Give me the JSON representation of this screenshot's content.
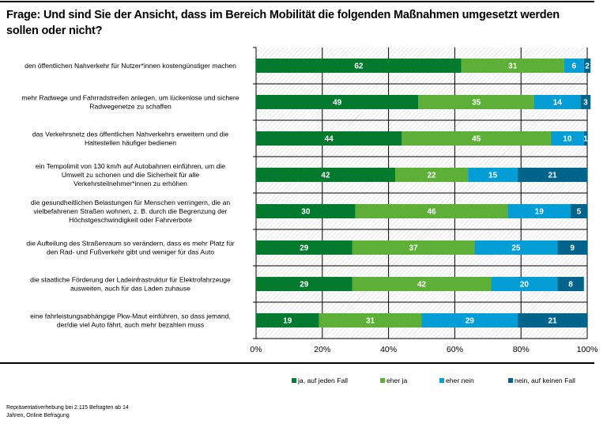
{
  "title": "Frage: Und sind Sie der Ansicht, dass im Bereich Mobilität die folgenden Maßnahmen umgesetzt werden sollen oder nicht?",
  "footnote": {
    "line1": "Repräsentativerhebung bei 2.115 Befragten ab 14",
    "line2": "Jahren, Online Befragung"
  },
  "chart_data": {
    "type": "bar",
    "orientation": "horizontal",
    "stacked": true,
    "percent_stacked": true,
    "title": "Frage: Und sind Sie der Ansicht, dass im Bereich Mobilität die folgenden Maßnahmen umgesetzt werden sollen oder nicht?",
    "xlabel": "",
    "ylabel": "",
    "xlim": [
      0,
      100
    ],
    "x_ticks": [
      "0%",
      "20%",
      "40%",
      "60%",
      "80%",
      "100%"
    ],
    "grid": true,
    "legend_position": "bottom",
    "categories": [
      [
        "den öffentlichen Nahverkehr für Nutzer*innen kostengünstiger machen"
      ],
      [
        "mehr Radwege und Fahrradstreifen anlegen, um lückenlose und sichere",
        "Radwegenetze zu schaffen"
      ],
      [
        "das Verkehrsnetz des öffentlichen Nahverkehrs erweitern und die",
        "Haltestellen häufiger bedienen"
      ],
      [
        "ein Tempolimit von 130 km/h auf Autobahnen einführen, um die",
        "Umwelt zu schonen und die Sicherheit für alle",
        "Verkehrsteilnehmer*innen zu erhöhen"
      ],
      [
        "die gesundheitlichen Belastungen für Menschen verringern, die an",
        "vielbefahrenen Straßen wohnen, z. B. durch die Begrenzung der",
        "Höchstgeschwindigkeit oder Fahrverbote"
      ],
      [
        "die Aufteilung des Straßenraum so verändern, dass es mehr Platz für",
        "den Rad- und Fußverkehr gibt und weniger für das Auto"
      ],
      [
        "die staatliche Förderung der Ladeinfrastruktur für Elektrofahrzeuge",
        "ausweiten, auch für das Laden zuhause"
      ],
      [
        "eine fahrleistungsabhängige Pkw-Maut einführen, so dass jemand,",
        "der/die viel Auto fährt, auch mehr bezahlen muss"
      ]
    ],
    "series": [
      {
        "name": "ja, auf jeden Fall",
        "color": "#047A2E",
        "values": [
          62,
          49,
          44,
          42,
          30,
          29,
          29,
          19
        ]
      },
      {
        "name": "eher ja",
        "color": "#5EAF38",
        "values": [
          31,
          35,
          45,
          22,
          46,
          37,
          42,
          31
        ]
      },
      {
        "name": "eher nein",
        "color": "#049DD6",
        "values": [
          6,
          14,
          10,
          15,
          19,
          25,
          20,
          29
        ]
      },
      {
        "name": "nein, auf keinen Fall",
        "color": "#02648A",
        "values": [
          2,
          3,
          1,
          21,
          5,
          9,
          8,
          21
        ]
      }
    ]
  }
}
